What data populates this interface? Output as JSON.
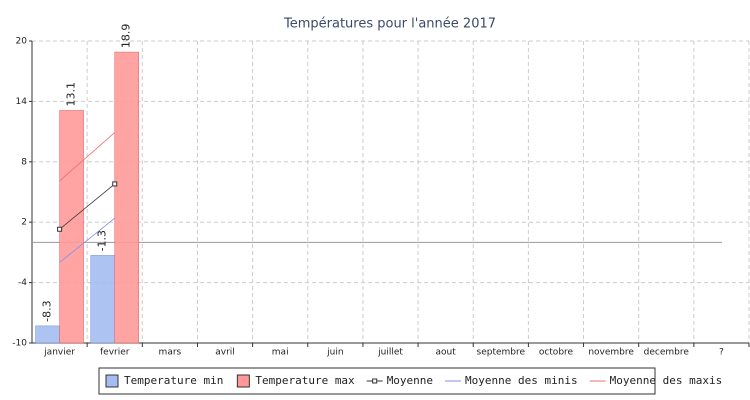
{
  "chart_data": {
    "type": "bar",
    "title": "Températures pour l'année 2017",
    "categories": [
      "janvier",
      "fevrier",
      "mars",
      "avril",
      "mai",
      "juin",
      "juillet",
      "aout",
      "septembre",
      "octobre",
      "novembre",
      "decembre",
      "?"
    ],
    "series": [
      {
        "name": "Temperature min",
        "type": "bar",
        "color": "#a4bdf0",
        "values": [
          -8.3,
          -1.3,
          null,
          null,
          null,
          null,
          null,
          null,
          null,
          null,
          null,
          null,
          null
        ]
      },
      {
        "name": "Temperature max",
        "type": "bar",
        "color": "#ff9999",
        "values": [
          13.1,
          18.9,
          null,
          null,
          null,
          null,
          null,
          null,
          null,
          null,
          null,
          null,
          null
        ]
      },
      {
        "name": "Moyenne",
        "type": "line",
        "color": "#333333",
        "marker": "square",
        "values": [
          1.3,
          5.8,
          null,
          null,
          null,
          null,
          null,
          null,
          null,
          null,
          null,
          null,
          null
        ]
      },
      {
        "name": "Moyenne des minis",
        "type": "line",
        "color": "#7f90e8",
        "values": [
          -2.0,
          2.4,
          null,
          null,
          null,
          null,
          null,
          null,
          null,
          null,
          null,
          null,
          null
        ]
      },
      {
        "name": "Moyenne des maxis",
        "type": "line",
        "color": "#ee6f6f",
        "values": [
          6.1,
          10.9,
          null,
          null,
          null,
          null,
          null,
          null,
          null,
          null,
          null,
          null,
          null
        ]
      }
    ],
    "ylim": [
      -10,
      20
    ],
    "yticks": [
      -10,
      -4,
      2,
      8,
      14,
      20
    ],
    "grid": true
  }
}
